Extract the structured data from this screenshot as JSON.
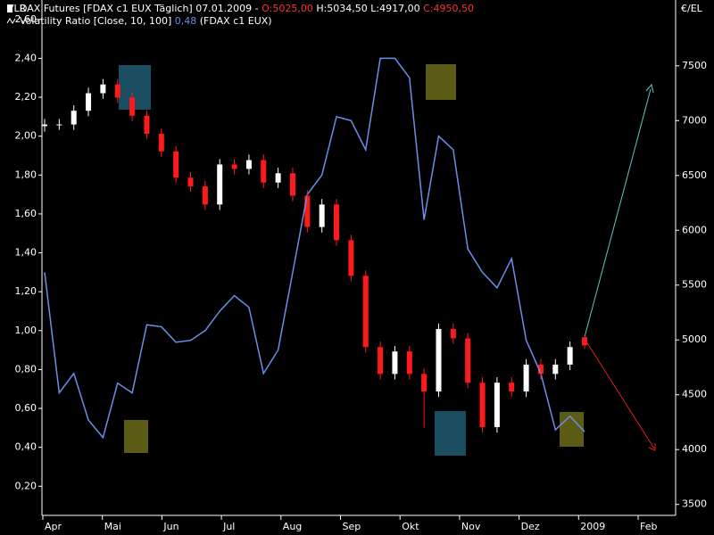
{
  "chart_data": {
    "type": "candlestick",
    "y_axis_title": "VLR",
    "y2_axis_title": "€/EL",
    "header": [
      [
        {
          "text": "DAX Futures [FDAX c1 EUX  Täglich] 07.01.2009 - ",
          "color": "#ffffff"
        },
        {
          "text": "O:5025,00",
          "color": "#ff3030"
        },
        {
          "text": " H:5034,50 L:4917,00 ",
          "color": "#ffffff"
        },
        {
          "text": "C:4950,50",
          "color": "#ff3030"
        }
      ],
      [
        {
          "text": "Volatility Ratio [Close, 10, 100] ",
          "color": "#ffffff"
        },
        {
          "text": "0,48",
          "color": "#6b8ee8"
        },
        {
          "text": " (FDAX c1 EUX)",
          "color": "#ffffff"
        }
      ]
    ],
    "x_labels": [
      "Apr",
      "Mai",
      "Jun",
      "Jul",
      "Aug",
      "Sep",
      "Okt",
      "Nov",
      "Dez",
      "2009",
      "Feb"
    ],
    "ylim": [
      0.05,
      2.7
    ],
    "yticks": [
      {
        "value": 0.2,
        "label": "0,20"
      },
      {
        "value": 0.4,
        "label": "0,40"
      },
      {
        "value": 0.6,
        "label": "0,60"
      },
      {
        "value": 0.8,
        "label": "0,80"
      },
      {
        "value": 1.0,
        "label": "1,00"
      },
      {
        "value": 1.2,
        "label": "1,20"
      },
      {
        "value": 1.4,
        "label": "1,40"
      },
      {
        "value": 1.6,
        "label": "1,60"
      },
      {
        "value": 1.8,
        "label": "1,80"
      },
      {
        "value": 2.0,
        "label": "2,00"
      },
      {
        "value": 2.2,
        "label": "2,20"
      },
      {
        "value": 2.4,
        "label": "2,40"
      },
      {
        "value": 2.6,
        "label": "2,60"
      }
    ],
    "y2lim": [
      3400,
      8100
    ],
    "y2ticks": [
      3500,
      4000,
      4500,
      5000,
      5500,
      6000,
      6500,
      7000,
      7500
    ],
    "series": [
      {
        "name": "DAX Futures",
        "axis": "y2",
        "up_color": "#ffffff",
        "down_color": "#ff1a1a",
        "open": [
          6950,
          6965,
          6965,
          7090,
          7250,
          7330,
          7210,
          7045,
          6880,
          6720,
          6480,
          6400,
          6235,
          6600,
          6560,
          6640,
          6435,
          6520,
          6315,
          6030,
          6235,
          5910,
          5585,
          4935,
          4690,
          4895,
          4690,
          4530,
          5100,
          5015,
          4610,
          4205,
          4610,
          4530,
          4775,
          4690,
          4775,
          5025
        ],
        "high": [
          7015,
          7015,
          7140,
          7300,
          7380,
          7380,
          7260,
          7095,
          6930,
          6770,
          6530,
          6450,
          6650,
          6650,
          6690,
          6690,
          6570,
          6570,
          6365,
          6285,
          6285,
          5960,
          5635,
          4985,
          4945,
          4945,
          4740,
          5150,
          5150,
          5065,
          4660,
          4660,
          4660,
          4825,
          4825,
          4825,
          4985,
          5034.5
        ],
        "low": [
          6900,
          6915,
          6915,
          7040,
          7200,
          7160,
          6995,
          6830,
          6670,
          6430,
          6350,
          6185,
          6185,
          6510,
          6510,
          6385,
          6385,
          6265,
          5980,
          5980,
          5860,
          5535,
          4885,
          4640,
          4640,
          4640,
          4200,
          4480,
          4965,
          4560,
          4155,
          4155,
          4480,
          4480,
          4640,
          4640,
          4725,
          4917
        ],
        "close": [
          6965,
          6965,
          7090,
          7250,
          7330,
          7210,
          7045,
          6880,
          6720,
          6480,
          6400,
          6235,
          6600,
          6560,
          6640,
          6435,
          6520,
          6315,
          6030,
          6235,
          5910,
          5585,
          4935,
          4690,
          4895,
          4690,
          4530,
          5100,
          5015,
          4610,
          4205,
          4610,
          4530,
          4775,
          4690,
          4775,
          4935,
          4950.5
        ]
      },
      {
        "name": "Volatility Ratio",
        "axis": "y",
        "color": "#6b8ee8",
        "values": [
          1.3,
          0.68,
          0.78,
          0.54,
          0.45,
          0.73,
          0.68,
          1.03,
          1.02,
          0.94,
          0.95,
          1.0,
          1.1,
          1.18,
          1.12,
          0.78,
          0.9,
          1.3,
          1.7,
          1.8,
          2.1,
          2.08,
          1.93,
          2.4,
          2.4,
          2.3,
          1.57,
          2.0,
          1.93,
          1.42,
          1.3,
          1.22,
          1.37,
          0.95,
          0.78,
          0.49,
          0.56,
          0.48
        ]
      }
    ]
  }
}
